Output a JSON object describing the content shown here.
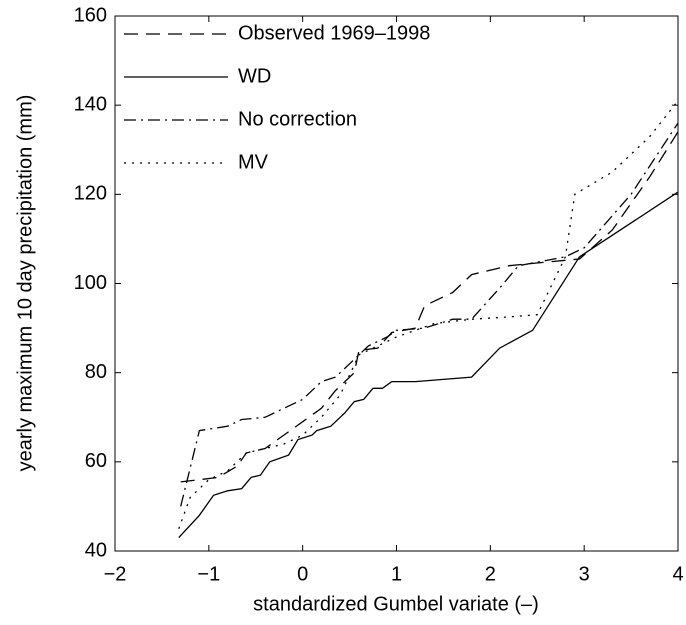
{
  "chart_data": {
    "type": "line",
    "xlabel": "standardized Gumbel variate (–)",
    "ylabel": "yearly maximum 10 day precipitation (mm)",
    "xlim": [
      -2,
      4
    ],
    "ylim": [
      40,
      160
    ],
    "xticks": [
      {
        "value": -2,
        "label": "−2"
      },
      {
        "value": -1,
        "label": "−1"
      },
      0,
      1,
      2,
      3,
      4
    ],
    "yticks": [
      40,
      60,
      80,
      100,
      120,
      140,
      160
    ],
    "legend": "upper-left",
    "series": [
      {
        "name": "Observed 1969–1998",
        "color": "#000000",
        "linestyle": "dashed",
        "x": [
          -1.3,
          -1.1,
          -0.9,
          -0.7,
          -0.6,
          -0.4,
          -0.2,
          0,
          0.2,
          0.35,
          0.55,
          0.6,
          0.8,
          0.95,
          1.2,
          1.3,
          1.6,
          1.8,
          2.2,
          2.45,
          2.95,
          3.3,
          3.7,
          4
        ],
        "values": [
          55.5,
          56,
          56.5,
          59,
          62,
          63,
          66,
          69,
          72,
          76,
          80,
          85,
          85.5,
          89,
          90,
          95,
          98,
          102,
          104,
          104.5,
          105.5,
          112,
          124,
          134
        ]
      },
      {
        "name": "WD",
        "color": "#000000",
        "linestyle": "solid",
        "x": [
          -1.32,
          -1.1,
          -0.95,
          -0.8,
          -0.65,
          -0.55,
          -0.45,
          -0.35,
          -0.15,
          -0.05,
          0.1,
          0.15,
          0.3,
          0.45,
          0.55,
          0.65,
          0.75,
          0.85,
          0.95,
          1.2,
          1.8,
          2.1,
          2.45,
          2.95,
          4
        ],
        "values": [
          43,
          48,
          52.5,
          53.5,
          54,
          56.5,
          57,
          60,
          61.5,
          65,
          66,
          67,
          68,
          71,
          73.5,
          74,
          76.5,
          76.5,
          78,
          78,
          79,
          85.5,
          89.5,
          106,
          120.5
        ]
      },
      {
        "name": "No correction",
        "color": "#000000",
        "linestyle": "dashdot",
        "x": [
          -1.3,
          -1.1,
          -0.8,
          -0.65,
          -0.4,
          -0.2,
          0,
          0.2,
          0.35,
          0.5,
          0.7,
          0.9,
          1.0,
          1.3,
          1.6,
          1.8,
          2.1,
          2.3,
          2.8,
          3,
          3.5,
          4
        ],
        "values": [
          50,
          67,
          68,
          69.5,
          70,
          72,
          74,
          78,
          79,
          82,
          86,
          88,
          89.5,
          90,
          92,
          92,
          99,
          104,
          106,
          108,
          120,
          136
        ]
      },
      {
        "name": "MV",
        "color": "#000000",
        "linestyle": "dotted",
        "x": [
          -1.32,
          -1.2,
          -1.0,
          -0.8,
          -0.6,
          -0.4,
          -0.2,
          0,
          0.2,
          0.4,
          0.6,
          0.8,
          1.0,
          1.4,
          1.8,
          2.2,
          2.5,
          2.8,
          2.9,
          3.3,
          3.7,
          4
        ],
        "values": [
          45,
          52,
          56,
          58,
          62,
          63,
          64,
          66,
          70,
          75,
          84,
          86,
          88,
          91,
          92,
          92.5,
          93,
          106,
          120,
          125,
          133,
          141
        ]
      }
    ]
  }
}
